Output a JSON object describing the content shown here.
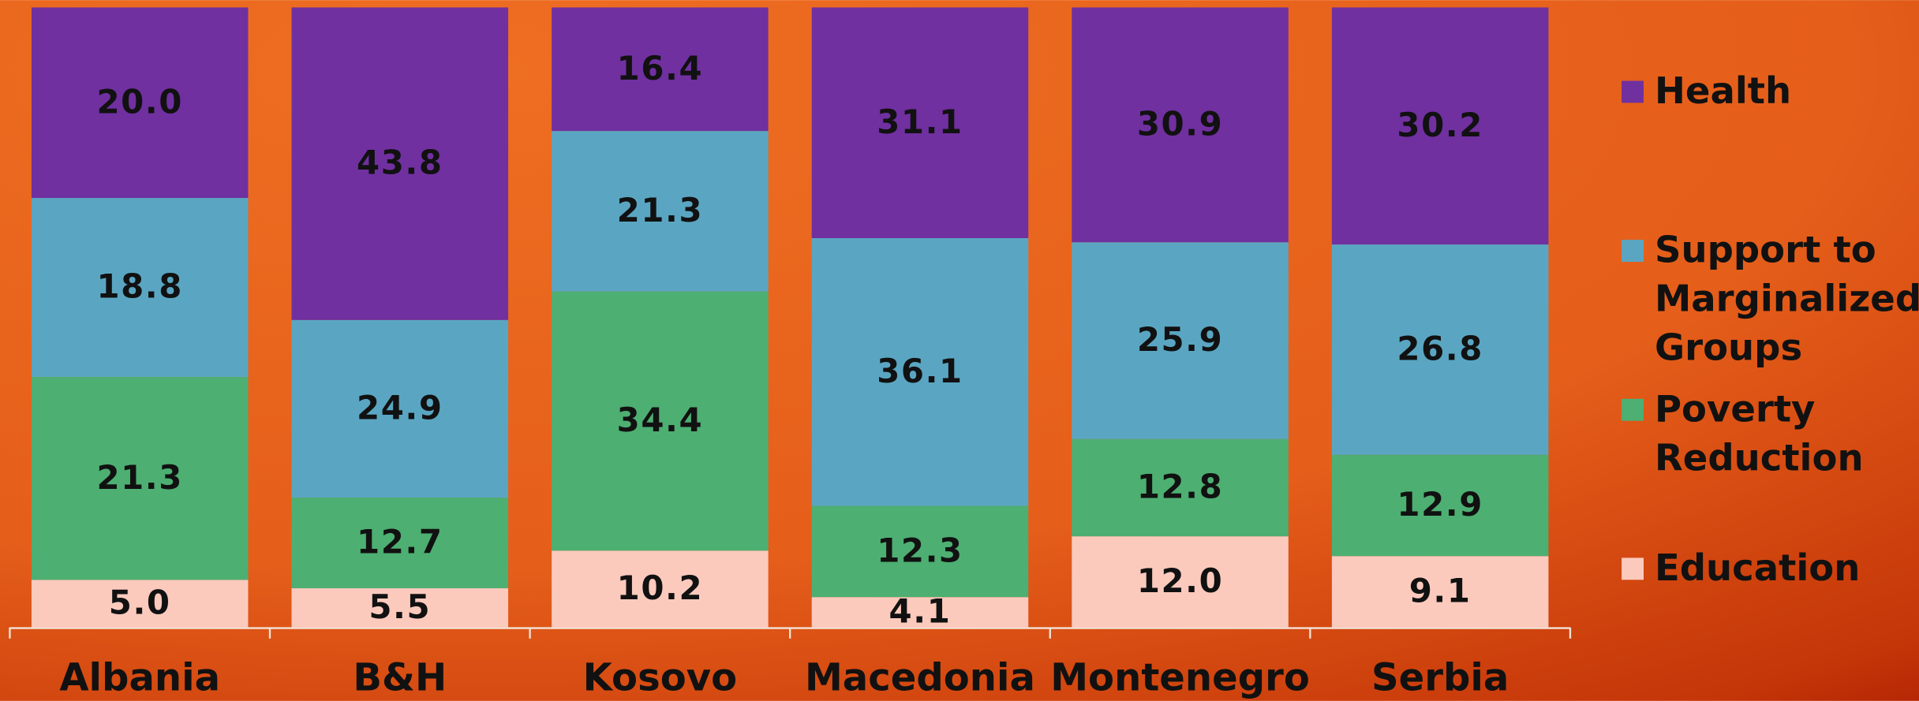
{
  "chart_data": {
    "type": "bar",
    "stacked": "percent",
    "categories": [
      "Albania",
      "B&H",
      "Kosovo",
      "Macedonia",
      "Montenegro",
      "Serbia"
    ],
    "series": [
      {
        "name": "Education",
        "color": "#fbcabd",
        "values": [
          5.0,
          5.5,
          10.2,
          4.1,
          12.0,
          9.1
        ],
        "value_labels": [
          "5.0",
          "5.5",
          "10.2",
          "4.1",
          "12.0",
          "9.1"
        ]
      },
      {
        "name": "Poverty Reduction",
        "color": "#4daf72",
        "values": [
          21.3,
          12.7,
          34.4,
          12.3,
          12.8,
          12.9
        ],
        "value_labels": [
          "21.3",
          "12.7",
          "34.4",
          "12.3",
          "12.8",
          "12.9"
        ]
      },
      {
        "name": "Support to Marginalized Groups",
        "color": "#5aa6c2",
        "values": [
          18.8,
          24.9,
          21.3,
          36.1,
          25.9,
          26.8
        ],
        "value_labels": [
          "18.8",
          "24.9",
          "21.3",
          "36.1",
          "25.9",
          "26.8"
        ]
      },
      {
        "name": "Health",
        "color": "#7030a0",
        "values": [
          20.0,
          43.8,
          16.4,
          31.1,
          30.9,
          30.2
        ],
        "value_labels": [
          "20.0",
          "43.8",
          "16.4",
          "31.1",
          "30.9",
          "30.2"
        ]
      }
    ],
    "legend": "right"
  }
}
